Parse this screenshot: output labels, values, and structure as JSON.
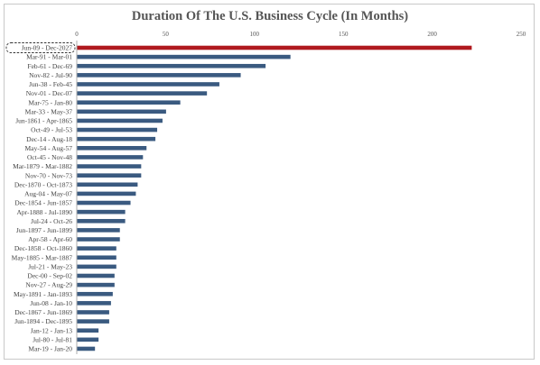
{
  "chart_data": {
    "type": "bar",
    "orientation": "horizontal",
    "title": "Duration Of The U.S. Business Cycle (In Months)",
    "xlim": [
      0,
      250
    ],
    "xticks": [
      0,
      50,
      100,
      150,
      200,
      250
    ],
    "grid": false,
    "categories": [
      "Jun-09 - Dec-2027",
      "Mar-91 - Mar-01",
      "Feb-61 - Dec-69",
      "Nov-82 - Jul-90",
      "Jun-38 - Feb-45",
      "Nov-01 - Dec-07",
      "Mar-75 - Jan-80",
      "Mar-33 - May-37",
      "Jun-1861 - Apr-1865",
      "Oct-49 - Jul-53",
      "Dec-14 - Aug-18",
      "May-54 - Aug-57",
      "Oct-45 - Nov-48",
      "Mar-1879 - Mar-1882",
      "Nov-70 - Nov-73",
      "Dec-1870 - Oct-1873",
      "Aug-04 - May-07",
      "Dec-1854 - Jun-1857",
      "Apr-1888 - Jul-1890",
      "Jul-24 - Oct-26",
      "Jun-1897 - Jun-1899",
      "Apr-58 - Apr-60",
      "Dec-1858 - Oct-1860",
      "May-1885 - Mar-1887",
      "Jul-21 - May-23",
      "Dec-00 - Sep-02",
      "Nov-27 - Aug-29",
      "May-1891 - Jan-1893",
      "Jun-08 - Jan-10",
      "Dec-1867 - Jun-1869",
      "Jun-1894 - Dec-1895",
      "Jan-12 - Jan-13",
      "Jul-80 - Jul-81",
      "Mar-19 - Jan-20"
    ],
    "values": [
      222,
      120,
      106,
      92,
      80,
      73,
      58,
      50,
      48,
      45,
      44,
      39,
      37,
      36,
      36,
      34,
      33,
      30,
      27,
      27,
      24,
      24,
      22,
      22,
      22,
      21,
      21,
      20,
      19,
      18,
      18,
      12,
      12,
      10
    ],
    "highlight_index": 0
  },
  "colors": {
    "bar": "#3a5a80",
    "highlight": "#b0191e",
    "axis": "#9a9a9a"
  }
}
